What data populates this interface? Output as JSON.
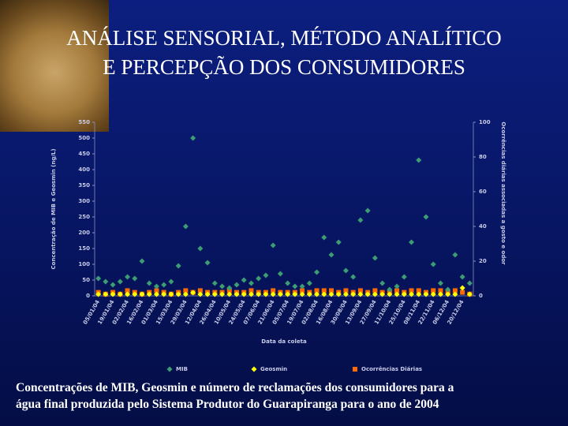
{
  "title_lines": [
    "ANÁLISE SENSORIAL, MÉTODO ANALÍTICO",
    "E PERCEPÇÃO DOS CONSUMIDORES"
  ],
  "caption_lines": [
    "Concentrações de MIB, Geosmin e número de reclamações dos consumidores para a",
    "água final produzida pelo Sistema Produtor do Guarapiranga para o ano de 2004"
  ],
  "chart_data": {
    "type": "scatter",
    "x_label": "Data da coleta",
    "y_label": "Concentração de MIB e Geosmin (ng/L)",
    "y2_label": "Ocorrências diárias associadas a gosto e odor",
    "categories": [
      "05/01/04",
      null,
      "19/01/04",
      null,
      "02/02/04",
      null,
      "16/02/04",
      null,
      "01/03/04",
      null,
      "15/03/04",
      null,
      "29/03/04",
      null,
      "12/04/04",
      null,
      "26/04/04",
      null,
      "10/05/04",
      null,
      "24/05/04",
      null,
      "07/06/04",
      null,
      "21/06/04",
      null,
      "05/07/04",
      null,
      "19/07/04",
      null,
      "02/08/04",
      null,
      "16/08/04",
      null,
      "30/08/04",
      null,
      "13/09/04",
      null,
      "27/09/04",
      null,
      "11/10/04",
      null,
      "25/10/04",
      null,
      "08/11/04",
      null,
      "22/11/04",
      null,
      "06/12/04",
      null,
      "20/12/04",
      null
    ],
    "series": [
      {
        "name": "MIB",
        "color": "#3c9c72",
        "marker": "diamond",
        "values": [
          55,
          45,
          35,
          45,
          60,
          55,
          110,
          40,
          30,
          35,
          45,
          95,
          220,
          500,
          150,
          105,
          40,
          30,
          25,
          35,
          50,
          40,
          55,
          65,
          160,
          70,
          40,
          30,
          30,
          40,
          75,
          185,
          130,
          170,
          80,
          60,
          240,
          270,
          120,
          40,
          20,
          30,
          60,
          170,
          430,
          250,
          100,
          40,
          20,
          130,
          60,
          40
        ]
      },
      {
        "name": "Geosmin",
        "color": "#ffff00",
        "marker": "diamond",
        "values": [
          5,
          5,
          5,
          5,
          5,
          5,
          5,
          5,
          5,
          5,
          5,
          5,
          5,
          10,
          5,
          5,
          5,
          5,
          5,
          5,
          5,
          5,
          5,
          5,
          5,
          5,
          5,
          5,
          5,
          5,
          5,
          5,
          5,
          5,
          5,
          5,
          5,
          5,
          5,
          5,
          5,
          5,
          5,
          5,
          5,
          5,
          5,
          5,
          5,
          5,
          25,
          5
        ]
      },
      {
        "name": "Ocorrências Diárias",
        "color": "#ff6a00",
        "marker": "square",
        "axis": "y2",
        "values": [
          2,
          1,
          2,
          1,
          3,
          2,
          1,
          2,
          3,
          2,
          1,
          2,
          3,
          2,
          3,
          2,
          2,
          2,
          3,
          2,
          2,
          3,
          2,
          2,
          3,
          2,
          2,
          2,
          3,
          2,
          3,
          3,
          3,
          2,
          3,
          2,
          3,
          2,
          3,
          2,
          2,
          3,
          2,
          3,
          3,
          2,
          3,
          3,
          2,
          3,
          2,
          1
        ]
      }
    ],
    "ylim": [
      0,
      550
    ],
    "yticks": [
      0,
      50,
      100,
      150,
      200,
      250,
      300,
      350,
      400,
      450,
      500,
      550
    ],
    "y2lim": [
      0,
      100
    ],
    "y2ticks": [
      0,
      20,
      40,
      60,
      80,
      100
    ],
    "legend_position": "bottom"
  }
}
